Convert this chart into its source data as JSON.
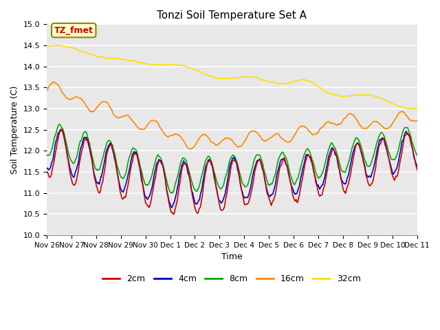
{
  "title": "Tonzi Soil Temperature Set A",
  "xlabel": "Time",
  "ylabel": "Soil Temperature (C)",
  "ylim": [
    10.0,
    15.0
  ],
  "yticks": [
    10.0,
    10.5,
    11.0,
    11.5,
    12.0,
    12.5,
    13.0,
    13.5,
    14.0,
    14.5,
    15.0
  ],
  "xtick_labels": [
    "Nov 26",
    "Nov 27",
    "Nov 28",
    "Nov 29",
    "Nov 30",
    "Dec 1",
    "Dec 2",
    "Dec 3",
    "Dec 4",
    "Dec 5",
    "Dec 6",
    "Dec 7",
    "Dec 8",
    "Dec 9",
    "Dec 10",
    "Dec 11"
  ],
  "background_color": "#e8e8e8",
  "grid_color": "#ffffff",
  "series_colors": {
    "2cm": "#cc0000",
    "4cm": "#0000cc",
    "8cm": "#00aa00",
    "16cm": "#ff8800",
    "32cm": "#ffdd00"
  },
  "series_linewidth": 1.2,
  "annotation_text": "TZ_fmet",
  "annotation_color": "#cc0000",
  "annotation_bg": "#ffffcc",
  "annotation_border": "#888800"
}
